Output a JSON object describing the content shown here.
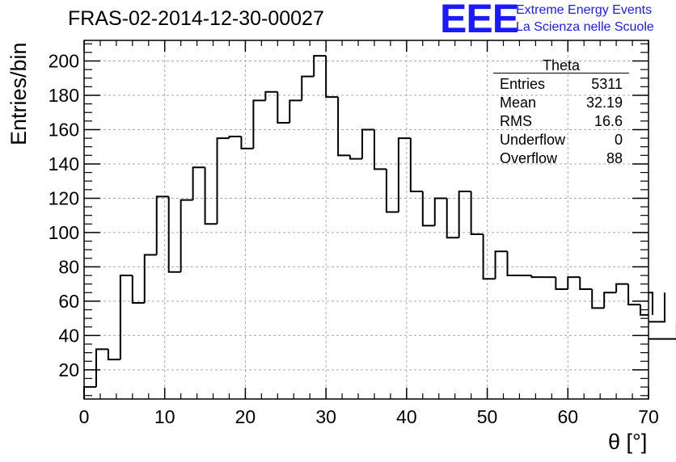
{
  "chart_data": {
    "type": "histogram",
    "title": "FRAS-02-2014-12-30-00027",
    "xlabel": "θ [°]",
    "ylabel": "Entries/bin",
    "xlim": [
      0,
      70
    ],
    "ylim": [
      3,
      212
    ],
    "bin_width": 1.5,
    "grid": true,
    "xticks": [
      0,
      10,
      20,
      30,
      40,
      50,
      60,
      70
    ],
    "yticks": [
      20,
      40,
      60,
      80,
      100,
      120,
      140,
      160,
      180,
      200
    ],
    "bin_edges_start": 0,
    "values": [
      10,
      32,
      26,
      75,
      59,
      87,
      121,
      77,
      119,
      138,
      105,
      155,
      156,
      149,
      177,
      182,
      164,
      177,
      191,
      203,
      179,
      145,
      143,
      160,
      137,
      112,
      155,
      124,
      104,
      120,
      97,
      124,
      99,
      73,
      89,
      75,
      75,
      74,
      74,
      67,
      74,
      67,
      56,
      65,
      70,
      58,
      52,
      65,
      48,
      38
    ],
    "stats_box": {
      "title": "Theta",
      "rows": [
        {
          "label": "Entries",
          "value": "5311"
        },
        {
          "label": "Mean",
          "value": "32.19"
        },
        {
          "label": "RMS",
          "value": "16.6"
        },
        {
          "label": "Underflow",
          "value": "0"
        },
        {
          "label": "Overflow",
          "value": "88"
        }
      ]
    }
  },
  "logo": {
    "text": "EEE",
    "line1": "Extreme Energy Events",
    "line2": "La Scienza nelle Scuole",
    "color": "#1a1aff"
  },
  "colors": {
    "line": "#000000",
    "grid": "#aaaaaa",
    "background": "#ffffff"
  }
}
